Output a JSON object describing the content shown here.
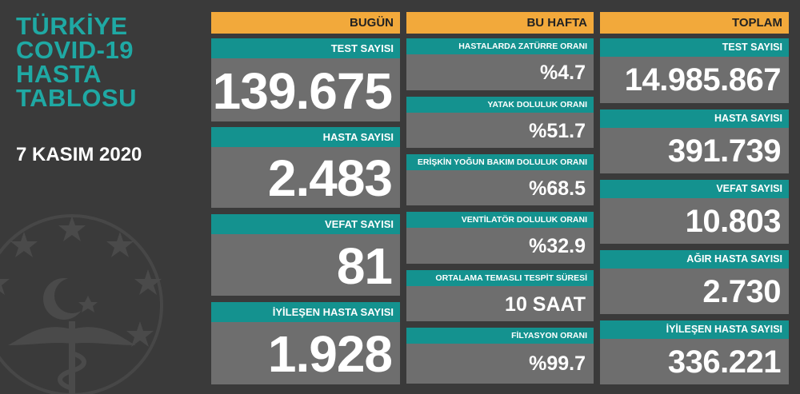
{
  "title_lines": [
    "TÜRKİYE",
    "COVID-19",
    "HASTA",
    "TABLOSU"
  ],
  "date": "7 KASIM 2020",
  "colors": {
    "accent": "#14928f",
    "header": "#f2a93b",
    "background": "#3a3a3a",
    "card": "#6e6e6e",
    "title": "#1fa9a4"
  },
  "today": {
    "header": "BUGÜN",
    "cards": [
      {
        "label": "TEST SAYISI",
        "value": "139.675"
      },
      {
        "label": "HASTA SAYISI",
        "value": "2.483"
      },
      {
        "label": "VEFAT SAYISI",
        "value": "81"
      },
      {
        "label": "İYİLEŞEN HASTA SAYISI",
        "value": "1.928"
      }
    ]
  },
  "week": {
    "header": "BU HAFTA",
    "cards": [
      {
        "label": "HASTALARDA ZATÜRRE ORANI",
        "value": "%4.7"
      },
      {
        "label": "YATAK DOLULUK ORANI",
        "value": "%51.7"
      },
      {
        "label": "ERİŞKİN YOĞUN BAKIM DOLULUK ORANI",
        "value": "%68.5"
      },
      {
        "label": "VENTİLATÖR DOLULUK ORANI",
        "value": "%32.9"
      },
      {
        "label": "ORTALAMA TEMASLI TESPİT SÜRESİ",
        "value": "10 SAAT"
      },
      {
        "label": "FİLYASYON ORANI",
        "value": "%99.7"
      }
    ]
  },
  "total": {
    "header": "TOPLAM",
    "cards": [
      {
        "label": "TEST SAYISI",
        "value": "14.985.867"
      },
      {
        "label": "HASTA SAYISI",
        "value": "391.739"
      },
      {
        "label": "VEFAT SAYISI",
        "value": "10.803"
      },
      {
        "label": "AĞIR HASTA SAYISI",
        "value": "2.730"
      },
      {
        "label": "İYİLEŞEN HASTA SAYISI",
        "value": "336.221"
      }
    ]
  }
}
